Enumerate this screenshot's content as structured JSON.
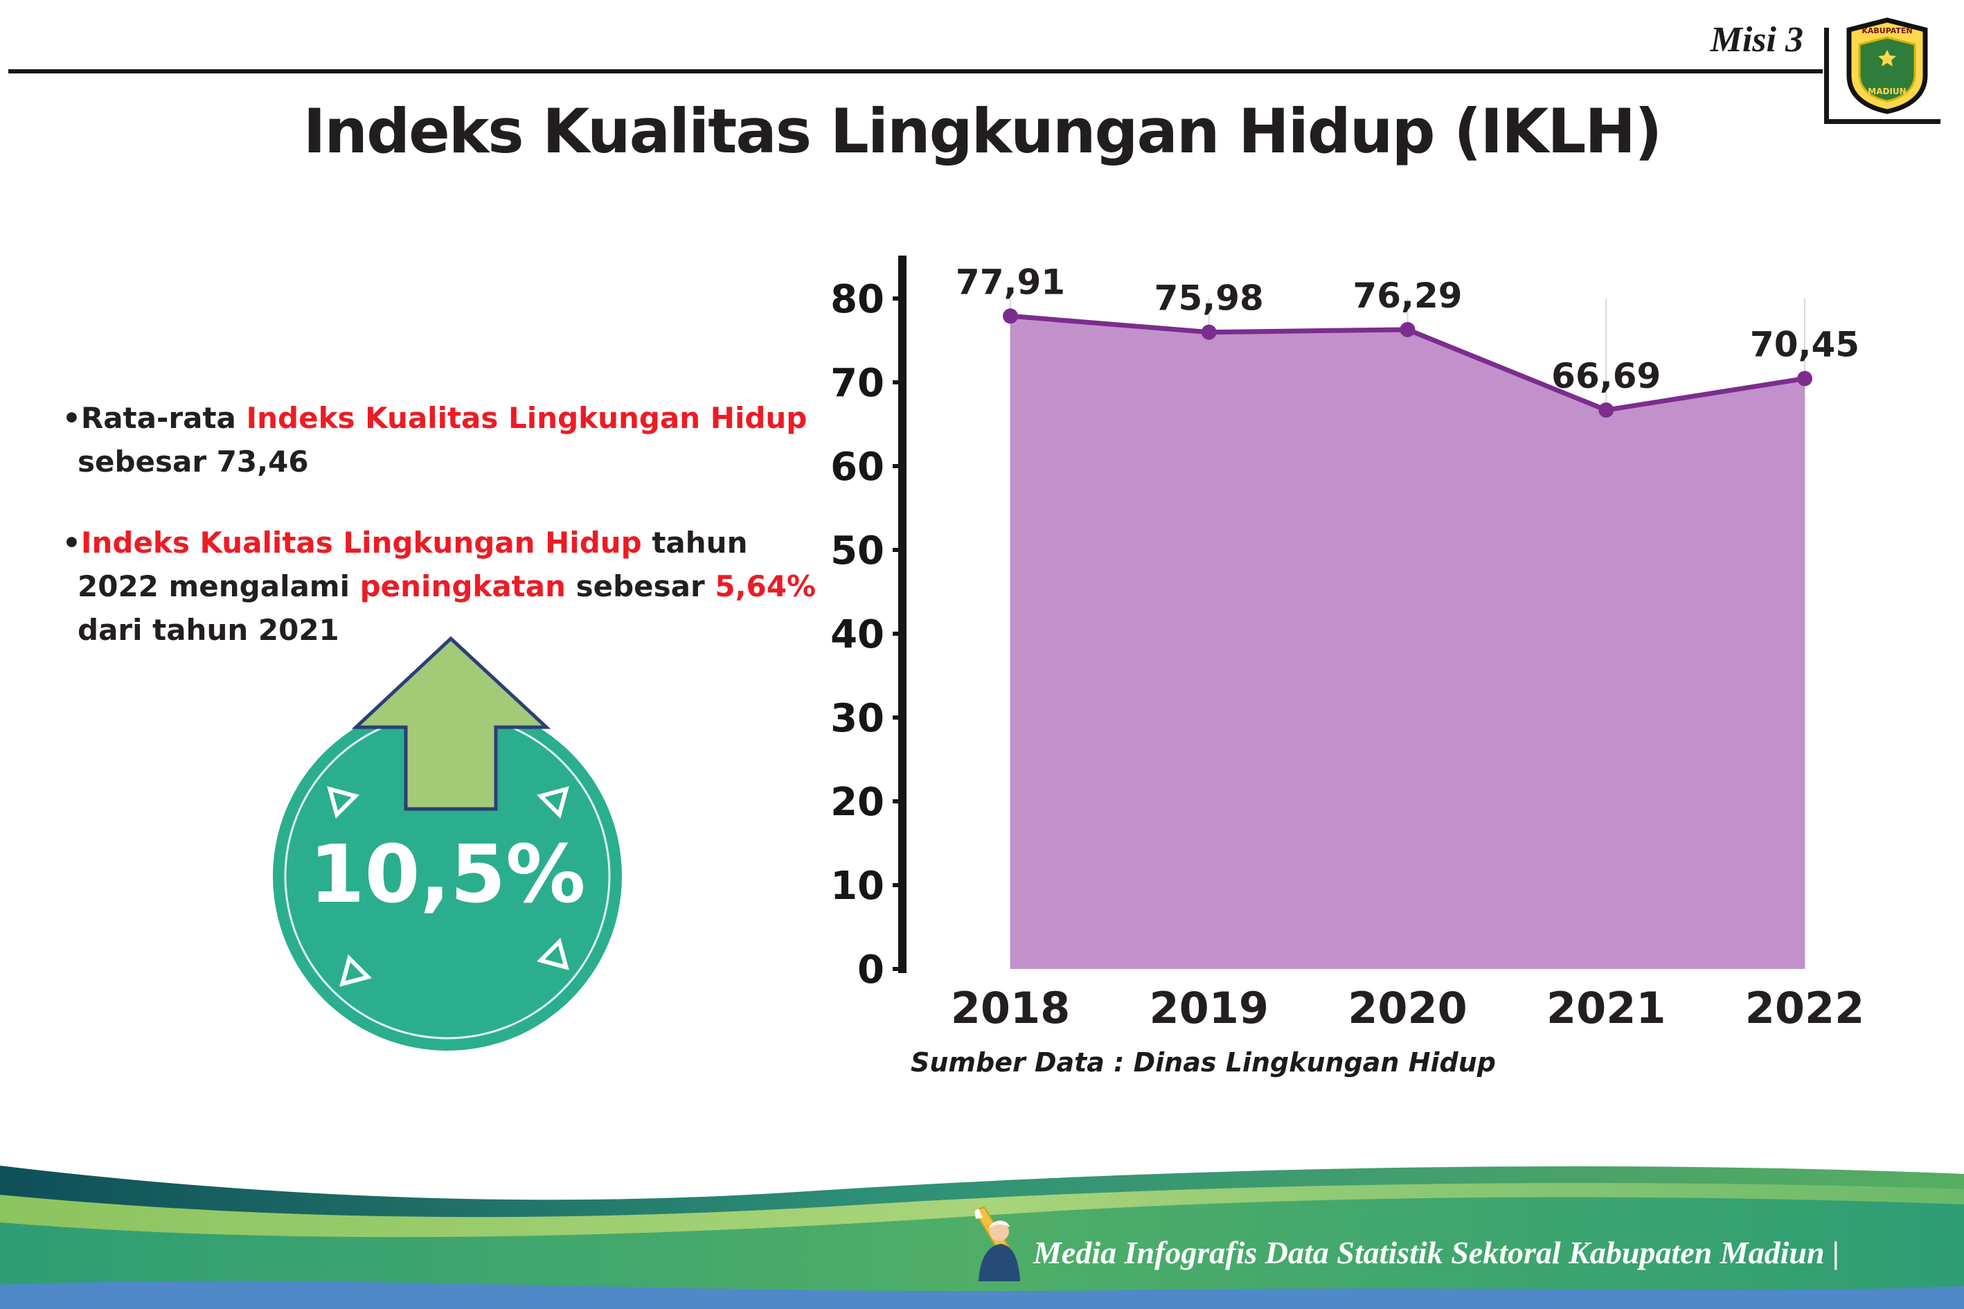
{
  "header": {
    "misi": "Misi 3",
    "logo": {
      "top_text": "KABUPATEN",
      "bottom_text": "MADIUN"
    }
  },
  "title": "Indeks Kualitas Lingkungan Hidup (IKLH)",
  "colors": {
    "accent_red": "#ed1b24",
    "badge_circle": "#2bae8e",
    "badge_arrow": "#a2ca77"
  },
  "notes": [
    {
      "bullet": "•",
      "segments": [
        {
          "text": "Rata-rata "
        },
        {
          "text": "Indeks Kualitas Lingkungan Hidup"
        },
        {
          "text": " sebesar 73,46"
        }
      ]
    },
    {
      "bullet": "•",
      "segments": [
        {
          "text": "Indeks Kualitas Lingkungan Hidup"
        },
        {
          "text": " tahun 2022 mengalami "
        },
        {
          "text": "peningkatan"
        },
        {
          "text": " sebesar "
        },
        {
          "text": "5,64%"
        },
        {
          "text": " dari tahun 2021"
        }
      ]
    }
  ],
  "badge": {
    "value": "10,5%"
  },
  "chart_data": {
    "type": "area",
    "title": "",
    "categories": [
      "2018",
      "2019",
      "2020",
      "2021",
      "2022"
    ],
    "values": [
      77.91,
      75.98,
      76.29,
      66.69,
      70.45
    ],
    "point_labels": [
      "77,91",
      "75,98",
      "76,29",
      "66,69",
      "70,45"
    ],
    "ylim": [
      0,
      80
    ],
    "yticks": [
      0,
      10,
      20,
      30,
      40,
      50,
      60,
      70,
      80
    ],
    "grid": "vertical",
    "legend": "none",
    "line_color": "#7b2d8e",
    "fill_color": "#c291cb",
    "source": "Sumber Data : Dinas Lingkungan Hidup"
  },
  "footer": {
    "credit": "Media Infografis Data Statistik Sektoral Kabupaten Madiun |"
  }
}
